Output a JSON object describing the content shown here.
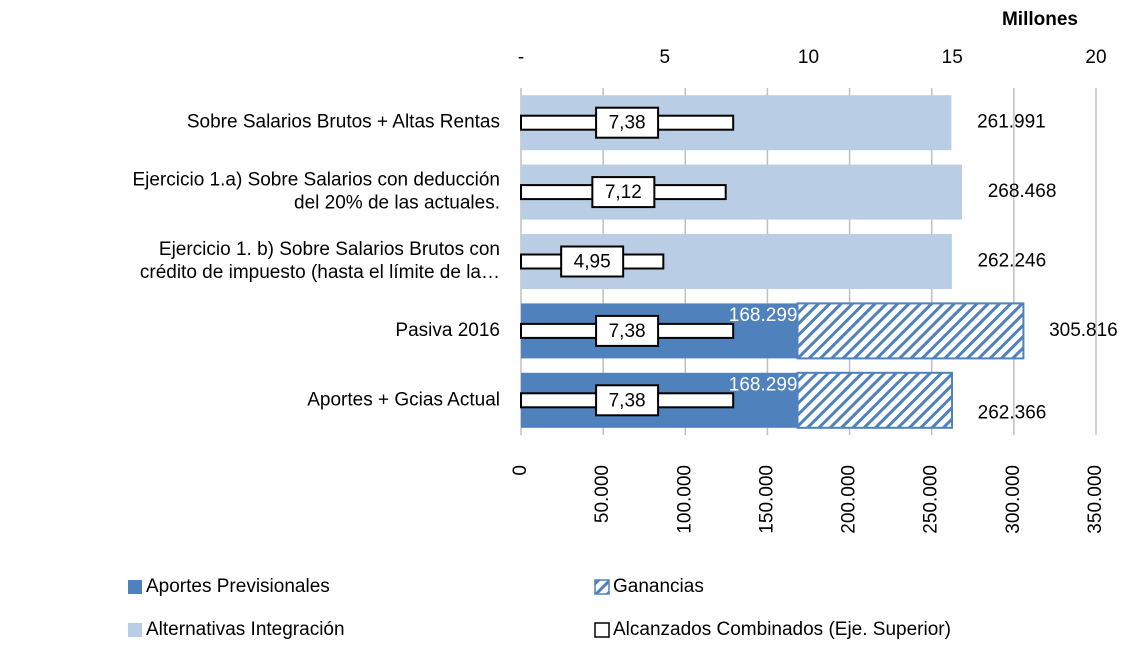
{
  "chart_data": {
    "type": "bar",
    "orientation": "horizontal",
    "categories": [
      "Sobre Salarios Brutos  + Altas Rentas",
      "Ejercicio 1.a) Sobre Salarios con deducción\ndel 20% de las actuales.",
      "Ejercicio 1. b) Sobre Salarios Brutos con\ncrédito de impuesto (hasta el límite de la…",
      "Pasiva 2016",
      "Aportes + Gcias Actual"
    ],
    "xlim": [
      0,
      350000
    ],
    "xticks": [
      0,
      {
        "value": 50000,
        "label": "50.000"
      },
      {
        "value": 100000,
        "label": "100.000"
      },
      {
        "value": 150000,
        "label": "150.000"
      },
      {
        "value": 200000,
        "label": "200.000"
      },
      {
        "value": 250000,
        "label": "250.000"
      },
      {
        "value": 300000,
        "label": "300.000"
      },
      {
        "value": 350000,
        "label": "350.000"
      }
    ],
    "x2label": "Millones",
    "x2lim": [
      0,
      20
    ],
    "x2ticks": [
      {
        "value": 0,
        "label": "-"
      },
      5,
      10,
      15,
      20
    ],
    "grid": true,
    "series": [
      {
        "name": "Aportes Previsionales",
        "color": "#4f81bd",
        "stack": "a",
        "values": [
          null,
          null,
          null,
          168299,
          168299
        ],
        "value_labels": [
          null,
          null,
          null,
          "168.299",
          "168.299"
        ]
      },
      {
        "name": "Ganancias",
        "color": "#4f81bd",
        "pattern": "hatch",
        "stack": "a",
        "values": [
          null,
          null,
          null,
          137517,
          94067
        ]
      },
      {
        "name": "Alternativas Integración",
        "color": "#b9cde5",
        "stack": "a",
        "values": [
          261991,
          268468,
          262246,
          null,
          null
        ],
        "value_labels": [
          "261.991",
          "268.468",
          "262.246",
          null,
          null
        ]
      },
      {
        "name": "Alcanzados Combinados (Eje. Superior)",
        "color": "#ffffff",
        "axis": "x2",
        "values": [
          7.38,
          7.12,
          4.95,
          7.38,
          7.38
        ],
        "value_labels": [
          "7,38",
          "7,12",
          "4,95",
          "7,38",
          "7,38"
        ]
      }
    ],
    "totals": {
      "values": [
        null,
        null,
        null,
        305816,
        262366
      ],
      "value_labels": [
        null,
        null,
        null,
        "305.816",
        "262.366"
      ]
    }
  }
}
